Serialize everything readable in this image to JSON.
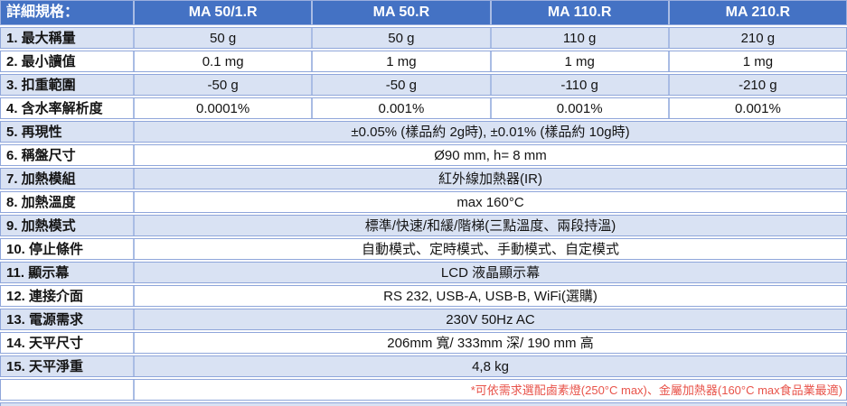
{
  "table": {
    "header": {
      "label": "詳細規格：",
      "columns": [
        "MA 50/1.R",
        "MA 50.R",
        "MA 110.R",
        "MA 210.R"
      ]
    },
    "rows": [
      {
        "label": "1. 最大稱量",
        "values": [
          "50 g",
          "50 g",
          "110 g",
          "210 g"
        ]
      },
      {
        "label": "2. 最小讀值",
        "values": [
          "0.1 mg",
          "1 mg",
          "1 mg",
          "1 mg"
        ]
      },
      {
        "label": "3. 扣重範圍",
        "values": [
          "-50 g",
          "-50 g",
          "-110 g",
          "-210 g"
        ]
      },
      {
        "label": "4. 含水率解析度",
        "values": [
          "0.0001%",
          "0.001%",
          "0.001%",
          "0.001%"
        ]
      },
      {
        "label": "5. 再現性",
        "merged": "±0.05% (樣品約 2g時), ±0.01% (樣品約 10g時)"
      },
      {
        "label": "6. 稱盤尺寸",
        "merged": "Ø90 mm, h= 8 mm"
      },
      {
        "label": "7. 加熱模組",
        "merged": "紅外線加熱器(IR)"
      },
      {
        "label": "8. 加熱溫度",
        "merged": "max 160°C"
      },
      {
        "label": "9. 加熱模式",
        "merged": "標準/快速/和緩/階梯(三點溫度、兩段持溫)"
      },
      {
        "label": "10. 停止條件",
        "merged": "自動模式、定時模式、手動模式、自定模式"
      },
      {
        "label": "11. 顯示幕",
        "merged": "LCD 液晶顯示幕"
      },
      {
        "label": "12. 連接介面",
        "merged": "RS 232, USB-A, USB-B, WiFi(選購)"
      },
      {
        "label": "13. 電源需求",
        "merged": "230V 50Hz AC"
      },
      {
        "label": "14. 天平尺寸",
        "merged": "206mm 寬/ 333mm 深/ 190 mm 高"
      },
      {
        "label": "15. 天平淨重",
        "merged": "4,8 kg"
      }
    ],
    "footnote": "*可依需求選配鹵素燈(250°C max)、金屬加熱器(160°C max食品業最適)",
    "colors": {
      "header_bg": "#4472C4",
      "header_text": "#FFFFFF",
      "band_bg": "#D9E2F3",
      "border": "#8FA6DA",
      "footnote_text": "#E8534A"
    }
  }
}
